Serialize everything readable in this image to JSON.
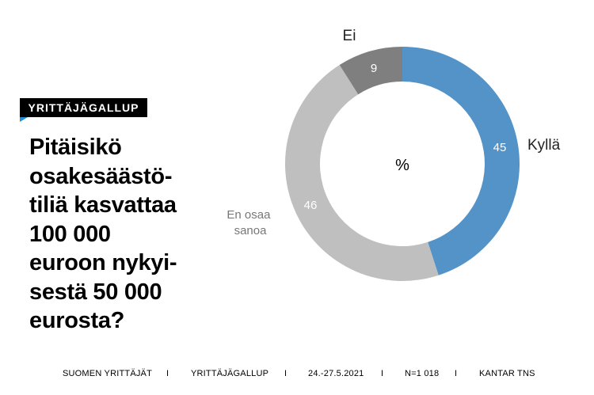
{
  "badge": "YRITTÄJÄGALLUP",
  "title": "Pitäisikö\nosakesäästö-\ntiliä kasvattaa\n100 000\neuroon nykyi-\nsestä 50 000\neurosta?",
  "footer": {
    "items": [
      "SUOMEN YRITTÄJÄT",
      "YRITTÄJÄGALLUP",
      "24.-27.5.2021",
      "N=1 018",
      "KANTAR TNS"
    ],
    "separator": "I"
  },
  "colors": {
    "kylla": "#5393c8",
    "ei": "#7f7f7f",
    "en_osaa": "#bfbfbf",
    "accent": "#1f8fd6"
  },
  "chart_data": {
    "type": "pie",
    "donut": true,
    "center_label": "%",
    "slices": [
      {
        "label": "Kyllä",
        "value": 45
      },
      {
        "label": "En osaa sanoa",
        "value": 46
      },
      {
        "label": "Ei",
        "value": 9
      }
    ]
  }
}
